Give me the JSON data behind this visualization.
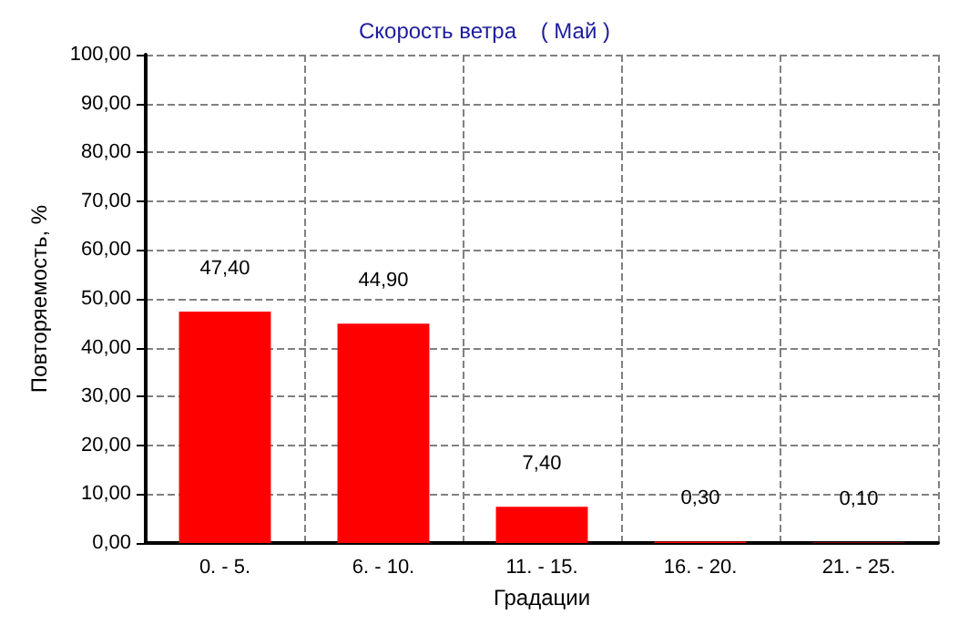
{
  "chart_data": {
    "type": "bar",
    "title": "Скорость ветра    ( Май )",
    "xlabel": "Градации",
    "ylabel": "Повторяемость, %",
    "categories": [
      "0. - 5.",
      "6. - 10.",
      "11. - 15.",
      "16. - 20.",
      "21. - 25."
    ],
    "values": [
      47.4,
      44.9,
      7.4,
      0.3,
      0.1
    ],
    "color": "#ff0000",
    "value_labels": [
      "47,40",
      "44,90",
      "7,40",
      "0,30",
      "0,10"
    ],
    "ylim": [
      0,
      100
    ],
    "yticks": [
      {
        "value": 0,
        "label": "0,00"
      },
      {
        "value": 10,
        "label": "10,00"
      },
      {
        "value": 20,
        "label": "20,00"
      },
      {
        "value": 30,
        "label": "30,00"
      },
      {
        "value": 40,
        "label": "40,00"
      },
      {
        "value": 50,
        "label": "50,00"
      },
      {
        "value": 60,
        "label": "60,00"
      },
      {
        "value": 70,
        "label": "70,00"
      },
      {
        "value": 80,
        "label": "80,00"
      },
      {
        "value": 90,
        "label": "90,00"
      },
      {
        "value": 100,
        "label": "100,00"
      }
    ],
    "grid": true
  }
}
